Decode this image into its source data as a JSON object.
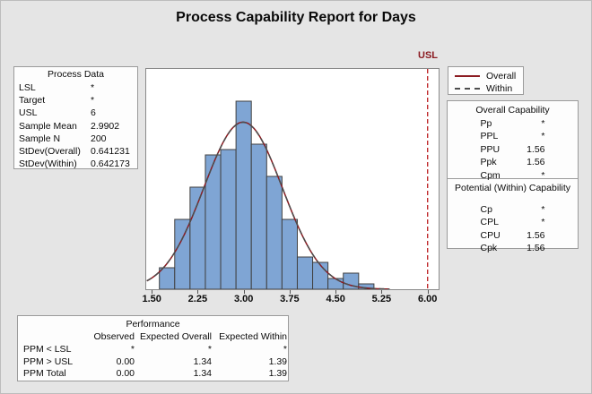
{
  "title": "Process Capability Report for Days",
  "usl_marker": "USL",
  "process_data": {
    "title": "Process Data",
    "rows": [
      {
        "label": "LSL",
        "value": "*"
      },
      {
        "label": "Target",
        "value": "*"
      },
      {
        "label": "USL",
        "value": "6"
      },
      {
        "label": "Sample Mean",
        "value": "2.9902"
      },
      {
        "label": "Sample N",
        "value": "200"
      },
      {
        "label": "StDev(Overall)",
        "value": "0.641231"
      },
      {
        "label": "StDev(Within)",
        "value": "0.642173"
      }
    ]
  },
  "legend": {
    "overall_label": "Overall",
    "within_label": "Within"
  },
  "overall_capability": {
    "title": "Overall Capability",
    "rows": [
      {
        "label": "Pp",
        "value": "*"
      },
      {
        "label": "PPL",
        "value": "*"
      },
      {
        "label": "PPU",
        "value": "1.56"
      },
      {
        "label": "Ppk",
        "value": "1.56"
      },
      {
        "label": "Cpm",
        "value": "*"
      }
    ]
  },
  "within_capability": {
    "title": "Potential (Within) Capability",
    "rows": [
      {
        "label": "Cp",
        "value": "*"
      },
      {
        "label": "CPL",
        "value": "*"
      },
      {
        "label": "CPU",
        "value": "1.56"
      },
      {
        "label": "Cpk",
        "value": "1.56"
      }
    ]
  },
  "performance": {
    "title": "Performance",
    "columns": [
      "Observed",
      "Expected Overall",
      "Expected Within"
    ],
    "rows": [
      {
        "label": "PPM < LSL",
        "values": [
          "*",
          "*",
          "*"
        ]
      },
      {
        "label": "PPM > USL",
        "values": [
          "0.00",
          "1.34",
          "1.39"
        ]
      },
      {
        "label": "PPM Total",
        "values": [
          "0.00",
          "1.34",
          "1.39"
        ]
      }
    ]
  },
  "chart_data": {
    "type": "bar",
    "subtype": "histogram",
    "title": "Process Capability Report for Days",
    "xlabel": "",
    "ylabel": "",
    "grid": false,
    "xlim": [
      1.41,
      6.18
    ],
    "ylim": [
      0,
      41
    ],
    "bin_width": 0.25,
    "bin_centers": [
      1.75,
      2.0,
      2.25,
      2.5,
      2.75,
      3.0,
      3.25,
      3.5,
      3.75,
      4.0,
      4.25,
      4.5,
      4.75,
      5.0
    ],
    "counts": [
      4,
      13,
      19,
      25,
      26,
      35,
      27,
      21,
      13,
      6,
      5,
      2,
      3,
      1
    ],
    "x_ticks": [
      "1.50",
      "2.25",
      "3.00",
      "3.75",
      "4.50",
      "5.25",
      "6.00"
    ],
    "usl": 6,
    "curve_range": [
      1.42,
      5.38
    ],
    "curves": {
      "n": 200,
      "overall": {
        "name": "Overall",
        "mean": 2.9902,
        "stdev": 0.641231,
        "style": "solid"
      },
      "within": {
        "name": "Within",
        "mean": 2.9902,
        "stdev": 0.642173,
        "style": "dashed"
      }
    },
    "colors": {
      "bar_fill": "#7FA5D4",
      "bar_stroke": "#404040",
      "overall": "#8B1B21",
      "within": "#4D4D4D",
      "usl": "#C02B2E",
      "background": "#E5E5E5"
    }
  }
}
